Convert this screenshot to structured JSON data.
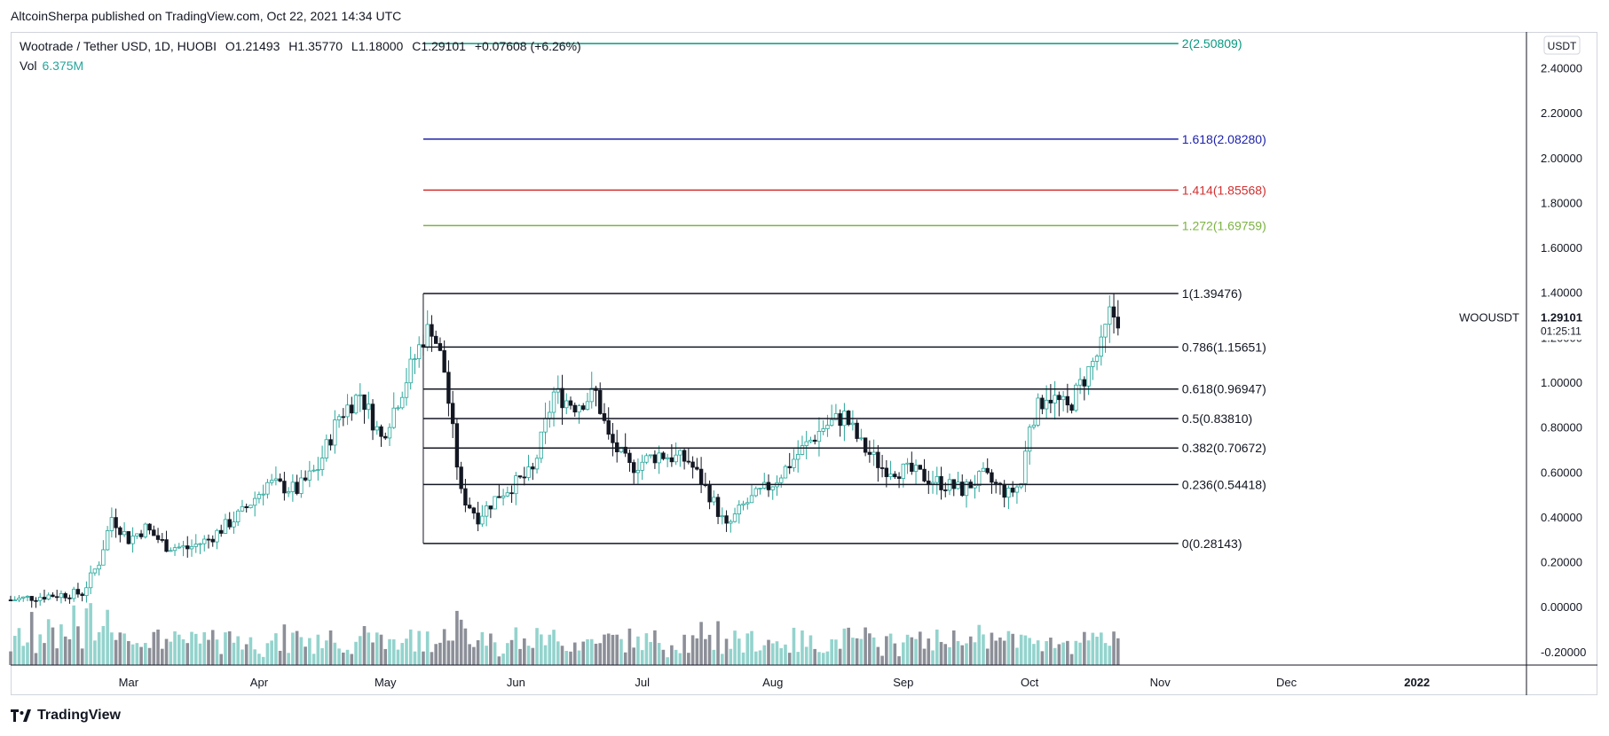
{
  "credit": "AltcoinSherpa published on TradingView.com, Oct 22, 2021 14:34 UTC",
  "brand": "TradingView",
  "header": {
    "symbol": "Wootrade / Tether USD, 1D, HUOBI",
    "open": "O1.21493",
    "high": "H1.35770",
    "low": "L1.18000",
    "close": "C1.29101",
    "change": "+0.07608 (+6.26%)"
  },
  "volume": {
    "label": "Vol",
    "value": "6.375M"
  },
  "price_scale": {
    "currency": "USDT",
    "ticker": "WOOUSDT",
    "last_price": "1.29101",
    "countdown": "01:25:11"
  },
  "colors": {
    "up": "#26a69a",
    "down": "#131722",
    "vol_up": "#80cbc4",
    "vol_down": "#787b86",
    "fib_2": "#089981",
    "fib_1618": "#1e22aa",
    "fib_1414": "#d32f2f",
    "fib_1272": "#7cb342",
    "fib_base": "#131722"
  },
  "chart_data": {
    "type": "candlestick",
    "y_axis_ticks": [
      "-0.20000",
      "0.00000",
      "0.20000",
      "0.40000",
      "0.60000",
      "0.80000",
      "1.00000",
      "1.20000",
      "1.40000",
      "1.60000",
      "1.80000",
      "2.00000",
      "2.20000",
      "2.40000"
    ],
    "ylim": [
      -0.26,
      2.56
    ],
    "x_axis_ticks": [
      "Mar",
      "Apr",
      "May",
      "Jun",
      "Jul",
      "Aug",
      "Sep",
      "Oct",
      "Nov",
      "Dec",
      "2022"
    ],
    "xlim": [
      "2021-02-01",
      "2022-01-27"
    ],
    "fib_levels": [
      {
        "label": "2(2.50809)",
        "value": 2.50809,
        "color": "#089981"
      },
      {
        "label": "1.618(2.08280)",
        "value": 2.0828,
        "color": "#1e22aa"
      },
      {
        "label": "1.414(1.85568)",
        "value": 1.85568,
        "color": "#d32f2f"
      },
      {
        "label": "1.272(1.69759)",
        "value": 1.69759,
        "color": "#7cb342"
      },
      {
        "label": "1(1.39476)",
        "value": 1.39476,
        "color": "#131722"
      },
      {
        "label": "0.786(1.15651)",
        "value": 1.15651,
        "color": "#131722"
      },
      {
        "label": "0.618(0.96947)",
        "value": 0.96947,
        "color": "#131722"
      },
      {
        "label": "0.5(0.83810)",
        "value": 0.8381,
        "color": "#131722"
      },
      {
        "label": "0.382(0.70672)",
        "value": 0.70672,
        "color": "#131722"
      },
      {
        "label": "0.236(0.54418)",
        "value": 0.54418,
        "color": "#131722"
      },
      {
        "label": "0(0.28143)",
        "value": 0.28143,
        "color": "#131722"
      }
    ],
    "fib_range": [
      "2021-05-10",
      "2021-10-22"
    ],
    "price_path": [
      [
        "2021-02-01",
        0.03
      ],
      [
        "2021-02-10",
        0.05
      ],
      [
        "2021-02-18",
        0.06
      ],
      [
        "2021-02-22",
        0.2
      ],
      [
        "2021-02-25",
        0.4
      ],
      [
        "2021-03-01",
        0.3
      ],
      [
        "2021-03-05",
        0.35
      ],
      [
        "2021-03-10",
        0.27
      ],
      [
        "2021-03-15",
        0.26
      ],
      [
        "2021-03-20",
        0.3
      ],
      [
        "2021-03-28",
        0.42
      ],
      [
        "2021-04-03",
        0.55
      ],
      [
        "2021-04-10",
        0.52
      ],
      [
        "2021-04-15",
        0.62
      ],
      [
        "2021-04-20",
        0.85
      ],
      [
        "2021-04-25",
        0.95
      ],
      [
        "2021-04-30",
        0.75
      ],
      [
        "2021-05-05",
        0.97
      ],
      [
        "2021-05-10",
        1.2
      ],
      [
        "2021-05-12",
        1.25
      ],
      [
        "2021-05-15",
        1.05
      ],
      [
        "2021-05-19",
        0.5
      ],
      [
        "2021-05-23",
        0.4
      ],
      [
        "2021-05-28",
        0.5
      ],
      [
        "2021-06-05",
        0.6
      ],
      [
        "2021-06-10",
        0.95
      ],
      [
        "2021-06-15",
        0.9
      ],
      [
        "2021-06-20",
        0.95
      ],
      [
        "2021-06-23",
        0.75
      ],
      [
        "2021-06-28",
        0.62
      ],
      [
        "2021-07-05",
        0.68
      ],
      [
        "2021-07-12",
        0.65
      ],
      [
        "2021-07-17",
        0.5
      ],
      [
        "2021-07-21",
        0.35
      ],
      [
        "2021-07-25",
        0.45
      ],
      [
        "2021-08-01",
        0.55
      ],
      [
        "2021-08-07",
        0.68
      ],
      [
        "2021-08-13",
        0.8
      ],
      [
        "2021-08-18",
        0.85
      ],
      [
        "2021-08-22",
        0.72
      ],
      [
        "2021-08-27",
        0.62
      ],
      [
        "2021-09-03",
        0.6
      ],
      [
        "2021-09-10",
        0.55
      ],
      [
        "2021-09-15",
        0.52
      ],
      [
        "2021-09-20",
        0.58
      ],
      [
        "2021-09-26",
        0.5
      ],
      [
        "2021-09-29",
        0.55
      ],
      [
        "2021-10-01",
        0.82
      ],
      [
        "2021-10-05",
        0.95
      ],
      [
        "2021-10-10",
        0.88
      ],
      [
        "2021-10-14",
        1.02
      ],
      [
        "2021-10-18",
        1.15
      ],
      [
        "2021-10-20",
        1.3
      ],
      [
        "2021-10-22",
        1.29
      ]
    ],
    "volume_unit": "M"
  }
}
